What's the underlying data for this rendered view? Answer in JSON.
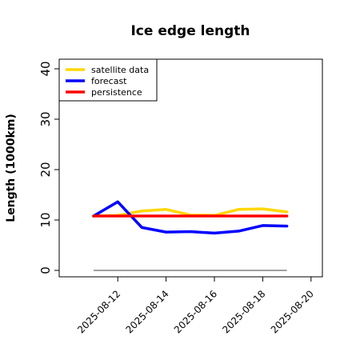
{
  "chart_data": {
    "type": "line",
    "title": "Ice edge length",
    "xlabel": "",
    "ylabel": "Length (1000km)",
    "ylim": [
      0,
      40
    ],
    "yticks": [
      0,
      10,
      20,
      30,
      40
    ],
    "x": [
      "2025-08-11",
      "2025-08-12",
      "2025-08-13",
      "2025-08-14",
      "2025-08-15",
      "2025-08-16",
      "2025-08-17",
      "2025-08-18",
      "2025-08-19"
    ],
    "xticks": [
      {
        "date": "2025-08-12",
        "label": "2025-08-12",
        "color": "#228B22"
      },
      {
        "date": "2025-08-14",
        "label": "2025-08-14",
        "color": "#000000"
      },
      {
        "date": "2025-08-16",
        "label": "2025-08-16",
        "color": "#000000"
      },
      {
        "date": "2025-08-18",
        "label": "2025-08-18",
        "color": "#000000"
      },
      {
        "date": "2025-08-20",
        "label": "2025-08-20",
        "color": "#000000"
      }
    ],
    "series": [
      {
        "name": "satellite data",
        "color": "#FFD700",
        "values": [
          10.8,
          10.9,
          11.8,
          12.1,
          11.0,
          10.9,
          12.1,
          12.2,
          11.6
        ]
      },
      {
        "name": "forecast",
        "color": "#0000FF",
        "values": [
          10.8,
          13.6,
          8.5,
          7.6,
          7.7,
          7.4,
          7.8,
          8.9,
          8.8
        ]
      },
      {
        "name": "persistence",
        "color": "#FF0000",
        "values": [
          10.8,
          10.8,
          10.8,
          10.8,
          10.8,
          10.8,
          10.8,
          10.8,
          10.8
        ]
      }
    ],
    "reference_line": {
      "value": 0,
      "color": "#808080",
      "x_start": "2025-08-11",
      "x_end": "2025-08-19"
    },
    "legend_position": "top-left",
    "grid": false
  }
}
